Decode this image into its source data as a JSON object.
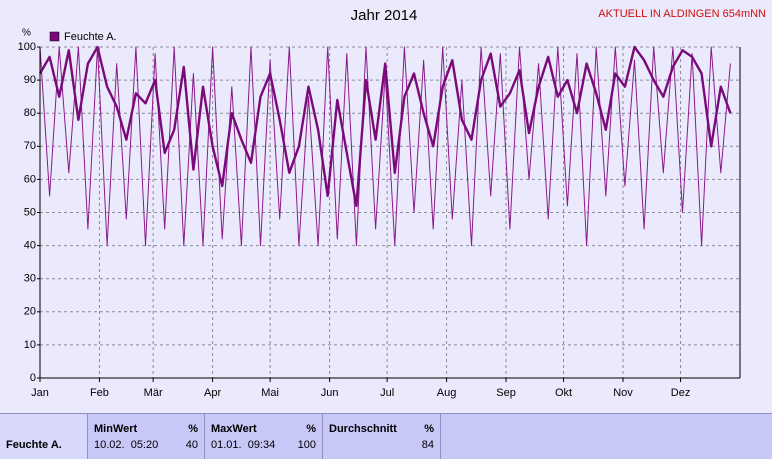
{
  "chart_data": {
    "type": "line",
    "title": "Jahr 2014",
    "subtitle": "AKTUELL IN ALDINGEN 654mNN",
    "y_label": "%",
    "x": [
      0,
      5,
      10,
      15,
      20,
      25,
      30,
      35,
      40,
      45,
      50,
      55,
      60,
      65,
      70,
      75,
      80,
      85,
      90,
      95,
      100,
      105,
      110,
      115,
      120,
      125,
      130,
      135,
      140,
      145,
      150,
      155,
      160,
      165,
      170,
      175,
      180,
      185,
      190,
      195,
      200,
      205,
      210,
      215,
      220,
      225,
      230,
      235,
      240,
      245,
      250,
      255,
      260,
      265,
      270,
      275,
      280,
      285,
      290,
      295,
      300,
      305,
      310,
      315,
      320,
      325,
      330,
      335,
      340,
      345,
      350,
      355,
      360
    ],
    "series": [
      {
        "name": "Feuchte A.",
        "color": "#7a0a7a",
        "values": [
          92,
          97,
          85,
          99,
          78,
          95,
          100,
          88,
          82,
          72,
          86,
          83,
          90,
          68,
          75,
          94,
          63,
          88,
          70,
          58,
          80,
          72,
          65,
          85,
          92,
          78,
          62,
          70,
          88,
          75,
          55,
          84,
          68,
          52,
          90,
          72,
          95,
          62,
          85,
          92,
          80,
          70,
          88,
          96,
          78,
          72,
          90,
          98,
          82,
          86,
          93,
          74,
          88,
          97,
          85,
          90,
          80,
          95,
          86,
          75,
          92,
          88,
          100,
          96,
          90,
          85,
          94,
          99,
          97,
          92,
          70,
          88,
          80
        ]
      },
      {
        "color": "#8a1a8a",
        "values": [
          100,
          55,
          100,
          62,
          100,
          45,
          100,
          40,
          95,
          48,
          100,
          40,
          98,
          45,
          100,
          40,
          92,
          40,
          100,
          42,
          88,
          40,
          100,
          40,
          96,
          48,
          100,
          40,
          85,
          40,
          100,
          42,
          98,
          40,
          100,
          45,
          92,
          40,
          100,
          50,
          96,
          45,
          100,
          48,
          90,
          40,
          100,
          55,
          98,
          45,
          100,
          60,
          95,
          48,
          100,
          52,
          98,
          40,
          100,
          55,
          100,
          58,
          96,
          45,
          100,
          62,
          100,
          50,
          98,
          40,
          100,
          62,
          95
        ]
      }
    ],
    "xlim": [
      0,
      365
    ],
    "xticks": [
      {
        "value": 0,
        "label": "Jan"
      },
      {
        "value": 31,
        "label": "Feb"
      },
      {
        "value": 59,
        "label": "Mär"
      },
      {
        "value": 90,
        "label": "Apr"
      },
      {
        "value": 120,
        "label": "Mai"
      },
      {
        "value": 151,
        "label": "Jun"
      },
      {
        "value": 181,
        "label": "Jul"
      },
      {
        "value": 212,
        "label": "Aug"
      },
      {
        "value": 243,
        "label": "Sep"
      },
      {
        "value": 273,
        "label": "Okt"
      },
      {
        "value": 304,
        "label": "Nov"
      },
      {
        "value": 334,
        "label": "Dez"
      }
    ],
    "ylim": [
      0,
      100
    ],
    "yticks": [
      0,
      10,
      20,
      30,
      40,
      50,
      60,
      70,
      80,
      90,
      100
    ],
    "grid": true
  },
  "summary": {
    "row": "Feuchte A.",
    "columns": [
      {
        "header": "MinWert",
        "unit": "%",
        "time": "10.02.  05:20",
        "value": "40"
      },
      {
        "header": "MaxWert",
        "unit": "%",
        "time": "01.01.  09:34",
        "value": "100"
      },
      {
        "header": "Durchschnitt",
        "unit": "%",
        "value": "84"
      }
    ]
  }
}
